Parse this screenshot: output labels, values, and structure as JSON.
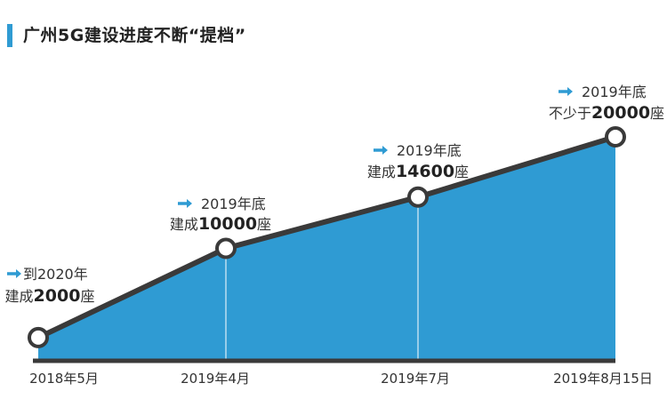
{
  "title": "广州5G建设进度不断“提档”",
  "colors": {
    "accent": "#2f9bd3",
    "area": "#2f9bd3",
    "line": "#3a3a3a",
    "axis": "#3a3a3a"
  },
  "chart_data": {
    "type": "area",
    "x": [
      "2018年5月",
      "2019年4月",
      "2019年7月",
      "2019年8月15日"
    ],
    "values": [
      2000,
      10000,
      14600,
      20000
    ],
    "ylim": [
      0,
      23500
    ],
    "grid": false,
    "legend": "none",
    "annotations": [
      {
        "line1": "到2020年",
        "prefix": "建成",
        "number": "2000",
        "suffix": "座"
      },
      {
        "line1": "2019年底",
        "prefix": "建成",
        "number": "10000",
        "suffix": "座"
      },
      {
        "line1": "2019年底",
        "prefix": "建成",
        "number": "14600",
        "suffix": "座"
      },
      {
        "line1": "2019年底",
        "prefix": "不少于",
        "number": "20000",
        "suffix": "座"
      }
    ]
  }
}
